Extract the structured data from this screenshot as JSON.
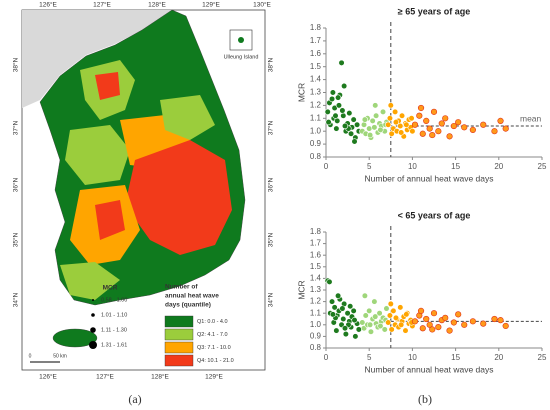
{
  "map": {
    "longitudes_top": [
      "126°E",
      "127°E",
      "128°E",
      "129°E",
      "130°E"
    ],
    "longitudes_bottom": [
      "126°E",
      "127°E",
      "128°E",
      "129°E"
    ],
    "latitudes": [
      "38°N",
      "37°N",
      "36°N",
      "35°N",
      "34°N"
    ],
    "inset_label": "Ulleung Island",
    "scale": [
      "0",
      "50 km"
    ],
    "mcr_legend": {
      "title": "MCR",
      "items": [
        "0.58 - 1.00",
        "1.01 - 1.10",
        "1.11 - 1.30",
        "1.31 - 1.61"
      ]
    },
    "heat_legend": {
      "title": [
        "Number of",
        "annual heat wave",
        "days (quantile)"
      ],
      "items": [
        "Q1: 0.0 - 4.0",
        "Q2: 4.1 - 7.0",
        "Q3: 7.1 - 10.0",
        "Q4: 10.1 - 21.0"
      ],
      "colors": [
        "#0f7a1e",
        "#9bcd3c",
        "#ffa500",
        "#f23a1a"
      ]
    },
    "panel_label": "(a)"
  },
  "panel_b_label": "(b)",
  "chart_data": [
    {
      "type": "scatter",
      "title": "≥ 65 years of age",
      "x_label": "Number of annual heat wave days",
      "y_label": "MCR",
      "xlim": [
        0,
        25
      ],
      "ylim": [
        0.8,
        1.8
      ],
      "xticks": [
        0,
        5,
        10,
        15,
        20,
        25
      ],
      "yticks": [
        0.8,
        0.9,
        {
          "value": 1,
          "label": "1.0"
        },
        1.1,
        1.2,
        1.3,
        1.4,
        1.5,
        1.6,
        1.7,
        1.8
      ],
      "threshold": 7.5,
      "mean": 1.04,
      "annotation": "mean",
      "series": [
        {
          "color": "#1e7a1e",
          "x": [
            0.2,
            0.4,
            0.5,
            0.7,
            0.9,
            1.0,
            1.2,
            1.3,
            1.5,
            1.6,
            1.8,
            2.0,
            2.1,
            2.3,
            2.5,
            2.7,
            2.9,
            3.0,
            3.2,
            3.4,
            3.6,
            3.8,
            0.3,
            1.1,
            1.9,
            2.6,
            3.3,
            1.4,
            2.2,
            0.8
          ],
          "values": [
            1.15,
            1.22,
            1.05,
            1.25,
            1.1,
            1.18,
            1.02,
            1.08,
            1.2,
            1.28,
            1.53,
            1.12,
            1.35,
            1.0,
            1.06,
            1.14,
            0.98,
            1.03,
            1.09,
            0.95,
            1.05,
            1.0,
            1.07,
            1.12,
            1.16,
            1.02,
            0.92,
            1.26,
            1.04,
            1.3
          ]
        },
        {
          "color": "#9fd67a",
          "x": [
            4.2,
            4.4,
            4.6,
            4.8,
            5.0,
            5.2,
            5.4,
            5.6,
            5.8,
            6.0,
            6.2,
            6.4,
            6.6,
            6.8,
            7.0,
            4.5,
            5.1,
            5.7,
            6.3,
            6.9
          ],
          "values": [
            1.0,
            1.05,
            0.98,
            1.1,
            1.02,
            0.95,
            1.08,
            1.03,
            1.12,
            0.99,
            1.06,
            1.04,
            1.15,
            1.0,
            1.07,
            1.09,
            0.97,
            1.2,
            1.01,
            1.05
          ]
        },
        {
          "color": "#ffa500",
          "x": [
            7.2,
            7.4,
            7.6,
            7.8,
            8.0,
            8.2,
            8.4,
            8.6,
            8.8,
            9.0,
            9.2,
            9.4,
            9.6,
            9.8,
            10.0,
            7.5,
            8.1,
            8.7,
            9.3,
            9.9
          ],
          "values": [
            1.05,
            1.1,
            0.98,
            1.02,
            1.15,
            1.0,
            1.08,
            1.04,
            1.12,
            0.96,
            1.06,
            1.01,
            1.09,
            1.03,
            1.0,
            1.2,
            1.07,
            0.99,
            1.05,
            1.1
          ]
        },
        {
          "color": "#ff9a1a",
          "x": [
            10.3,
            10.8,
            11.2,
            11.6,
            12.0,
            12.5,
            13.0,
            13.4,
            13.8,
            14.3,
            14.8,
            15.3,
            16.0,
            17.0,
            18.2,
            19.5,
            20.2,
            20.8,
            11.0,
            12.3
          ],
          "values": [
            1.05,
            1.12,
            0.98,
            1.08,
            1.02,
            1.15,
            1.0,
            1.06,
            1.1,
            0.96,
            1.04,
            1.07,
            1.03,
            1.01,
            1.05,
            1.0,
            1.08,
            1.02,
            1.18,
            0.97
          ]
        }
      ]
    },
    {
      "type": "scatter",
      "title": "< 65 years of age",
      "x_label": "Number of annual heat wave days",
      "y_label": "MCR",
      "xlim": [
        0,
        25
      ],
      "ylim": [
        0.8,
        1.8
      ],
      "xticks": [
        0,
        5,
        10,
        15,
        20,
        25
      ],
      "yticks": [
        0.8,
        0.9,
        {
          "value": 1,
          "label": "1.0"
        },
        1.1,
        1.2,
        1.3,
        1.4,
        1.5,
        1.6,
        1.7,
        1.8
      ],
      "threshold": 7.5,
      "mean": 1.03,
      "series": [
        {
          "color": "#1e7a1e",
          "x": [
            0.2,
            0.5,
            0.7,
            0.9,
            1.0,
            1.2,
            1.3,
            1.5,
            1.6,
            1.8,
            2.0,
            2.1,
            2.3,
            2.5,
            2.7,
            2.9,
            3.0,
            3.2,
            3.4,
            3.6,
            3.8,
            0.4,
            1.1,
            1.9,
            2.6,
            3.3,
            1.4,
            2.2,
            0.8,
            2.8
          ],
          "values": [
            1.38,
            1.1,
            1.2,
            1.02,
            1.15,
            0.95,
            1.08,
            1.12,
            1.22,
            1.0,
            1.05,
            1.18,
            0.92,
            1.1,
            1.03,
            0.98,
            1.07,
            1.12,
            0.9,
            1.01,
            0.96,
            1.37,
            1.06,
            1.14,
            1.0,
            1.04,
            1.25,
            0.97,
            1.09,
            1.16
          ]
        },
        {
          "color": "#9fd67a",
          "x": [
            4.2,
            4.4,
            4.6,
            4.8,
            5.0,
            5.2,
            5.4,
            5.6,
            5.8,
            6.0,
            6.2,
            6.4,
            6.6,
            6.8,
            7.0,
            4.5,
            5.1,
            5.7,
            6.3,
            6.9
          ],
          "values": [
            1.02,
            0.97,
            1.08,
            1.0,
            1.12,
            0.94,
            1.05,
            1.2,
            1.01,
            0.98,
            1.1,
            1.03,
            1.06,
            0.96,
            1.14,
            1.25,
            1.0,
            1.07,
            0.99,
            1.04
          ]
        },
        {
          "color": "#ffa500",
          "x": [
            7.2,
            7.4,
            7.6,
            7.8,
            8.0,
            8.2,
            8.4,
            8.6,
            8.8,
            9.0,
            9.2,
            9.4,
            9.6,
            9.8,
            10.0,
            7.5,
            8.1,
            8.7,
            9.3,
            9.9
          ],
          "values": [
            1.02,
            1.08,
            0.96,
            1.12,
            1.0,
            1.05,
            0.98,
            1.15,
            1.03,
            1.07,
            0.95,
            1.1,
            1.01,
            1.04,
            0.99,
            1.18,
            1.06,
            1.0,
            1.09,
            1.02
          ]
        },
        {
          "color": "#ff9a1a",
          "x": [
            10.3,
            10.8,
            11.2,
            11.6,
            12.0,
            12.5,
            13.0,
            13.4,
            13.8,
            14.3,
            14.8,
            15.3,
            16.0,
            17.0,
            18.2,
            19.5,
            20.2,
            20.8,
            11.0,
            12.3
          ],
          "values": [
            1.03,
            1.08,
            0.97,
            1.05,
            1.0,
            1.1,
            0.98,
            1.04,
            1.06,
            0.95,
            1.02,
            1.09,
            1.0,
            1.03,
            1.01,
            1.05,
            1.04,
            0.99,
            1.12,
            0.96
          ]
        }
      ]
    }
  ]
}
